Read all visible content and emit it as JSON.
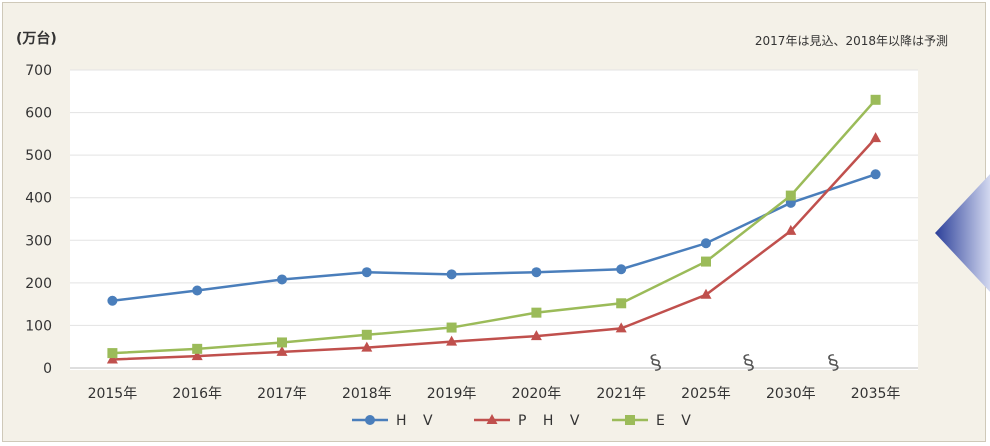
{
  "header": {
    "unit": "(万台)",
    "note": "2017年は見込、2018年以降は予測"
  },
  "chart_data": {
    "type": "line",
    "categories": [
      "2015年",
      "2016年",
      "2017年",
      "2018年",
      "2019年",
      "2020年",
      "2021年",
      "2025年",
      "2030年",
      "2035年"
    ],
    "ylim": [
      0,
      700
    ],
    "yticks": [
      0,
      100,
      200,
      300,
      400,
      500,
      600,
      700
    ],
    "grid": true,
    "legend_position": "bottom",
    "axis_break_marks": [
      "§",
      "§",
      "§"
    ],
    "series": [
      {
        "name": "H V",
        "color": "#4a7ebb",
        "marker": "circle",
        "values": [
          158,
          182,
          208,
          225,
          220,
          225,
          232,
          293,
          388,
          455
        ]
      },
      {
        "name": "P H V",
        "color": "#c0504d",
        "marker": "triangle",
        "values": [
          20,
          28,
          38,
          48,
          62,
          75,
          93,
          172,
          322,
          540
        ]
      },
      {
        "name": "E V",
        "color": "#9bbb59",
        "marker": "square",
        "values": [
          35,
          45,
          60,
          78,
          95,
          130,
          152,
          250,
          405,
          630
        ]
      }
    ]
  },
  "decor": {
    "arrow_color_dark": "#2b3f99",
    "arrow_color_light": "#d9def3"
  }
}
